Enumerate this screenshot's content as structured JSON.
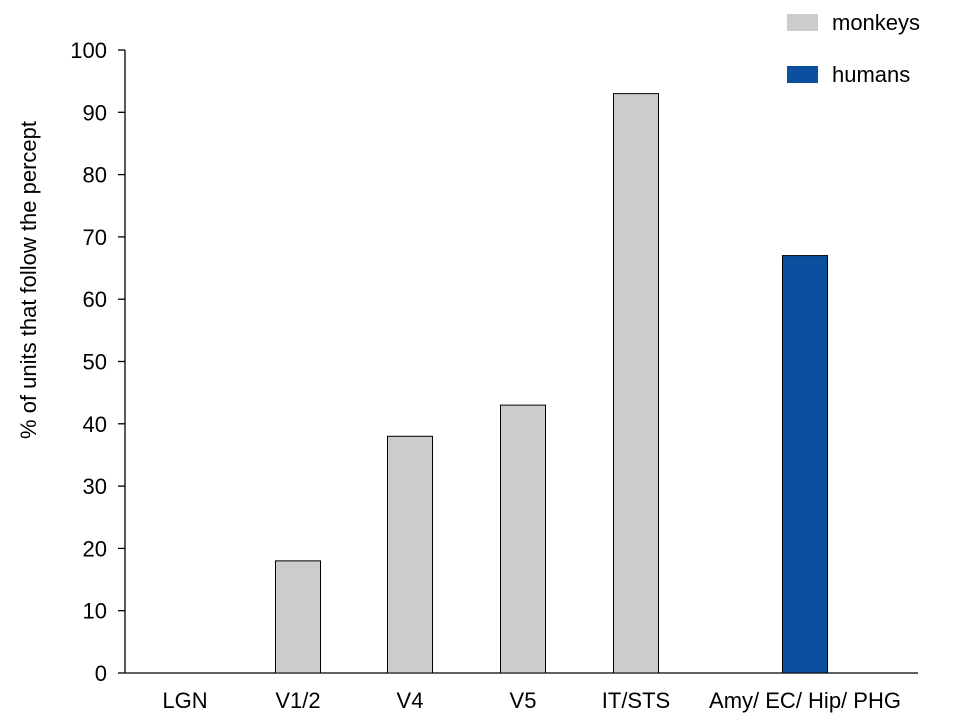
{
  "chart_data": {
    "type": "bar",
    "title": "",
    "xlabel": "",
    "ylabel": "% of units that follow the percept",
    "ylim": [
      0,
      100
    ],
    "yticks": [
      0,
      10,
      20,
      30,
      40,
      50,
      60,
      70,
      80,
      90,
      100
    ],
    "categories": [
      "LGN",
      "V1/2",
      "V4",
      "V5",
      "IT/STS",
      "Amy/ EC/ Hip/ PHG"
    ],
    "values": [
      0,
      18,
      38,
      43,
      93,
      67
    ],
    "bar_series": [
      "monkeys",
      "monkeys",
      "monkeys",
      "monkeys",
      "monkeys",
      "humans"
    ],
    "series": [
      {
        "name": "monkeys",
        "color": "#cccccc"
      },
      {
        "name": "humans",
        "color": "#0b4f9e"
      }
    ],
    "legend": {
      "position": "top-right"
    },
    "grid": false
  }
}
